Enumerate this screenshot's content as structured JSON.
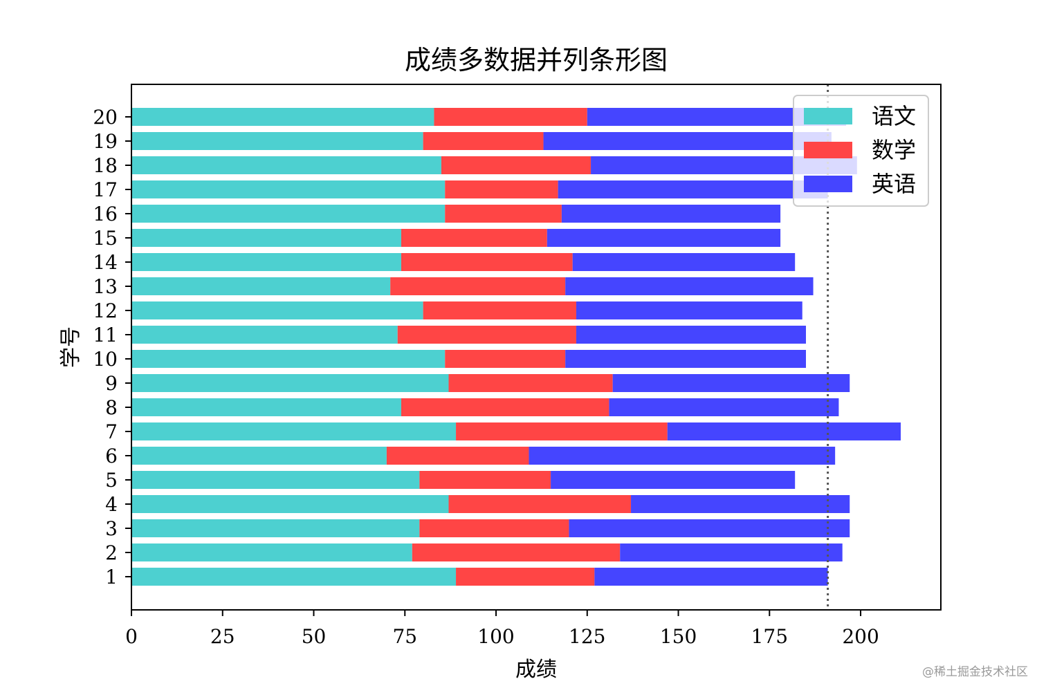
{
  "chart_data": {
    "type": "bar",
    "orientation": "horizontal",
    "stacked": true,
    "title": "成绩多数据并列条形图",
    "xlabel": "成绩",
    "ylabel": "学号",
    "xlim": [
      0,
      222
    ],
    "xticks": [
      0,
      25,
      50,
      75,
      100,
      125,
      150,
      175,
      200
    ],
    "categories": [
      "1",
      "2",
      "3",
      "4",
      "5",
      "6",
      "7",
      "8",
      "9",
      "10",
      "11",
      "12",
      "13",
      "14",
      "15",
      "16",
      "17",
      "18",
      "19",
      "20"
    ],
    "series": [
      {
        "name": "语文",
        "color": "#4dd0d0",
        "values": [
          89,
          77,
          79,
          87,
          79,
          70,
          89,
          74,
          87,
          86,
          73,
          80,
          71,
          74,
          74,
          86,
          86,
          85,
          80,
          83
        ]
      },
      {
        "name": "数学",
        "color": "#ff4545",
        "values": [
          38,
          57,
          41,
          50,
          36,
          39,
          58,
          57,
          45,
          33,
          49,
          42,
          48,
          47,
          40,
          32,
          31,
          41,
          33,
          42
        ]
      },
      {
        "name": "英语",
        "color": "#4545ff",
        "values": [
          64,
          61,
          77,
          60,
          67,
          84,
          64,
          63,
          65,
          66,
          63,
          62,
          68,
          61,
          64,
          60,
          74,
          73,
          79,
          71
        ]
      }
    ],
    "reference_line": {
      "x": 191,
      "style": "dotted",
      "color": "#555555"
    },
    "legend": {
      "placement": "top-right"
    },
    "grid": false
  },
  "watermark": "@稀土掘金技术社区"
}
